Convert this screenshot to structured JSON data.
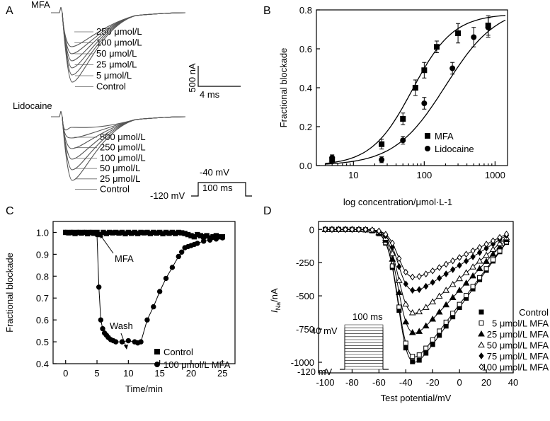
{
  "chart_data": [
    {
      "panel": "A",
      "type": "line",
      "groups": [
        {
          "drug": "MFA",
          "traces": [
            "250 μmol/L",
            "100 μmol/L",
            "50 μmol/L",
            "25 μmol/L",
            "5 μmol/L",
            "Control"
          ]
        },
        {
          "drug": "Lidocaine",
          "traces": [
            "500 μmol/L",
            "250 μmol/L",
            "100 μmol/L",
            "50 μmol/L",
            "25 μmol/L",
            "Control"
          ]
        }
      ],
      "scalebar": {
        "current": "500 nA",
        "time": "4 ms"
      },
      "protocol": {
        "hold": "-120 mV",
        "step": "-40 mV",
        "duration": "100 ms"
      }
    },
    {
      "panel": "B",
      "type": "scatter",
      "xlabel": "log concentration/μmol·L-1",
      "ylabel": "Fractional blockade",
      "xscale": "log",
      "xlim": [
        3,
        1500
      ],
      "ylim": [
        0,
        0.8
      ],
      "xticks": [
        "10",
        "100",
        "1000"
      ],
      "yticks": [
        "0.0",
        "0.2",
        "0.4",
        "0.6",
        "0.8"
      ],
      "legend_position": "bottom-right",
      "series": [
        {
          "name": "MFA",
          "marker": "square",
          "x": [
            5,
            25,
            50,
            75,
            100,
            150,
            300,
            800
          ],
          "y": [
            0.03,
            0.11,
            0.24,
            0.4,
            0.49,
            0.61,
            0.68,
            0.72
          ],
          "err": [
            0.02,
            0.025,
            0.03,
            0.04,
            0.04,
            0.03,
            0.05,
            0.05
          ],
          "fit": {
            "ic50": 68,
            "hill": 1.5,
            "max": 0.78
          }
        },
        {
          "name": "Lidocaine",
          "marker": "circle",
          "x": [
            5,
            25,
            50,
            100,
            250,
            500,
            800
          ],
          "y": [
            0.04,
            0.03,
            0.13,
            0.32,
            0.5,
            0.66,
            0.71
          ],
          "err": [
            0.015,
            0.015,
            0.02,
            0.03,
            0.03,
            0.05,
            0.05
          ],
          "fit": {
            "ic50": 200,
            "hill": 1.2,
            "max": 0.82
          }
        }
      ]
    },
    {
      "panel": "C",
      "type": "scatter",
      "xlabel": "Time/min",
      "ylabel": "Fractional blockade",
      "xlim": [
        -2,
        27
      ],
      "ylim": [
        0.4,
        1.05
      ],
      "xticks": [
        "0",
        "5",
        "10",
        "15",
        "20",
        "25"
      ],
      "yticks": [
        "0.4",
        "0.5",
        "0.6",
        "0.7",
        "0.8",
        "0.9",
        "1.0"
      ],
      "annotations": [
        "MFA",
        "Wash"
      ],
      "legend_position": "bottom-right",
      "series": [
        {
          "name": "Control",
          "marker": "square",
          "x": [
            0,
            0.5,
            1,
            1.5,
            2,
            2.5,
            3,
            3.5,
            4,
            4.5,
            5,
            5.5,
            6,
            6.5,
            7,
            7.5,
            8,
            8.5,
            9,
            9.5,
            10,
            10.5,
            11,
            11.5,
            12,
            12.5,
            13,
            13.5,
            14,
            14.5,
            15,
            15.5,
            16,
            16.5,
            17,
            17.5,
            18,
            18.5,
            19,
            19.5,
            20,
            20.5,
            21,
            21.5,
            22,
            22.5,
            23,
            23.5,
            24,
            24.5,
            25
          ],
          "y": [
            1.0,
            0.998,
            1.0,
            0.995,
            1.0,
            0.997,
            1.0,
            0.994,
            1.0,
            0.996,
            1.0,
            0.99,
            1.0,
            0.995,
            1.0,
            0.998,
            1.0,
            0.997,
            1.0,
            0.994,
            1.0,
            0.996,
            1.0,
            0.995,
            1.0,
            0.998,
            1.0,
            0.995,
            1.0,
            0.997,
            1.0,
            0.994,
            1.0,
            0.996,
            1.0,
            0.995,
            1.0,
            0.998,
            0.995,
            0.99,
            0.985,
            0.98,
            0.99,
            0.985,
            0.98,
            0.985,
            0.975,
            0.98,
            0.985,
            0.98,
            0.98
          ]
        },
        {
          "name": "100 μmol/L MFA",
          "marker": "circle",
          "x": [
            0,
            0.5,
            1,
            1.5,
            2,
            2.5,
            3,
            3.5,
            4,
            4.5,
            5,
            5.3,
            5.6,
            5.9,
            6.2,
            6.5,
            6.8,
            7.2,
            7.6,
            8,
            9,
            10,
            11,
            11.5,
            12,
            13,
            14,
            15,
            16,
            17,
            18,
            18.5,
            19,
            19.5,
            20,
            20.5,
            21,
            22,
            23,
            24,
            25
          ],
          "y": [
            1.0,
            1.0,
            1.0,
            1.0,
            1.0,
            1.0,
            1.0,
            1.0,
            1.0,
            1.0,
            0.99,
            0.75,
            0.6,
            0.56,
            0.54,
            0.53,
            0.52,
            0.51,
            0.505,
            0.5,
            0.5,
            0.505,
            0.5,
            0.495,
            0.5,
            0.6,
            0.66,
            0.73,
            0.79,
            0.84,
            0.89,
            0.91,
            0.93,
            0.935,
            0.94,
            0.945,
            0.95,
            0.96,
            0.965,
            0.97,
            0.975
          ]
        }
      ]
    },
    {
      "panel": "D",
      "type": "line",
      "xlabel": "Test potential/mV",
      "ylabel_main": "I",
      "ylabel_sub": "Na",
      "ylabel_unit": "/nA",
      "xlim": [
        -105,
        40
      ],
      "ylim": [
        -1080,
        60
      ],
      "xticks": [
        "-100",
        "-80",
        "-60",
        "-40",
        "-20",
        "0",
        "20",
        "40"
      ],
      "yticks": [
        "0",
        "-250",
        "-500",
        "-750",
        "-1000"
      ],
      "protocol": {
        "step": "40 mV",
        "hold": "-120 mV",
        "duration": "100 ms"
      },
      "x": [
        -100,
        -95,
        -90,
        -85,
        -80,
        -75,
        -70,
        -65,
        -60,
        -55,
        -50,
        -45,
        -40,
        -35,
        -30,
        -25,
        -20,
        -15,
        -10,
        -5,
        0,
        5,
        10,
        15,
        20,
        25,
        30,
        35
      ],
      "series": [
        {
          "name": "Control",
          "marker": "square-filled",
          "peak": -1000
        },
        {
          "name": "5 μmol/L MFA",
          "marker": "square-open",
          "peak": -960
        },
        {
          "name": "25 μmol/L MFA",
          "marker": "triangle-filled",
          "peak": -780
        },
        {
          "name": "50 μmol/L MFA",
          "marker": "triangle-open",
          "peak": -630
        },
        {
          "name": "75 μmol/L MFA",
          "marker": "diamond-filled",
          "peak": -460
        },
        {
          "name": "100 μmol/L MFA",
          "marker": "diamond-open",
          "peak": -360
        }
      ]
    }
  ]
}
